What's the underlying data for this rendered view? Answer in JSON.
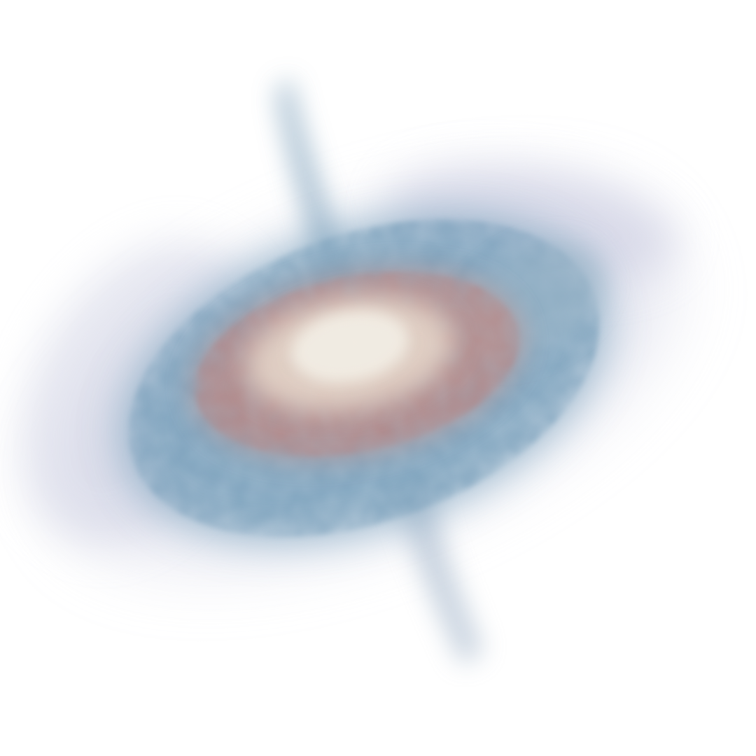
{
  "scene": {
    "subject": "galaxy",
    "colors": {
      "background": "#ffffff",
      "core": "#efe6da",
      "inner_ring": "#c98f86",
      "disk": "#7fa6bf",
      "halo": "#c9cbe0"
    }
  }
}
